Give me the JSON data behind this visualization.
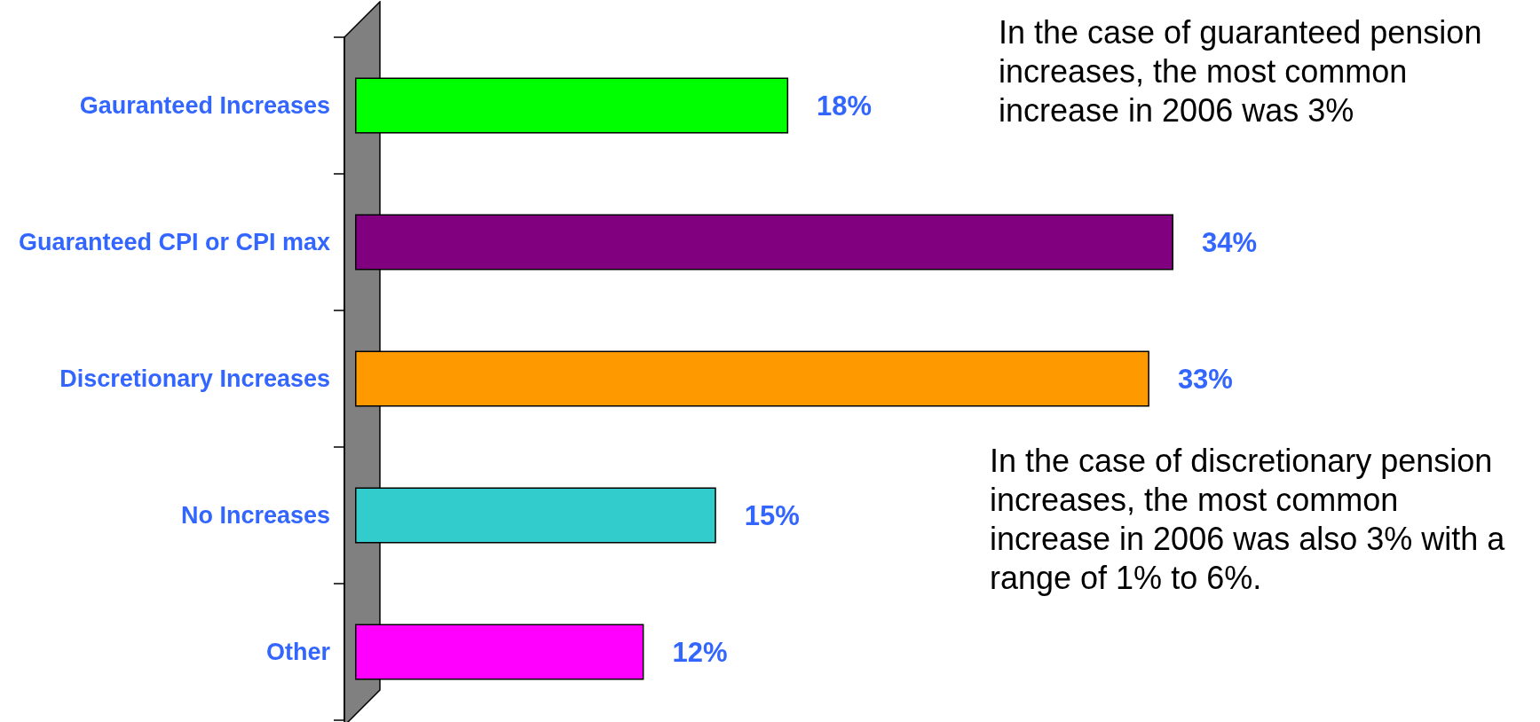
{
  "chart_data": {
    "type": "bar",
    "orientation": "horizontal",
    "categories": [
      "Gauranteed Increases",
      "Guaranteed CPI or CPI max",
      "Discretionary Increases",
      "No Increases",
      "Other"
    ],
    "values": [
      18,
      34,
      33,
      15,
      12
    ],
    "colors": [
      "#00ff00",
      "#800080",
      "#ff9900",
      "#33cccc",
      "#ff00ff"
    ],
    "value_labels": [
      "18%",
      "34%",
      "33%",
      "15%",
      "12%"
    ],
    "tick_labels": "y",
    "annotations": [
      "In the case of guaranteed pension\nincreases, the most common\nincrease in 2006 was 3%",
      "In the case of discretionary pension\nincreases, the most common\nincrease in 2006 was also 3% with a\nrange of 1% to 6%."
    ]
  }
}
